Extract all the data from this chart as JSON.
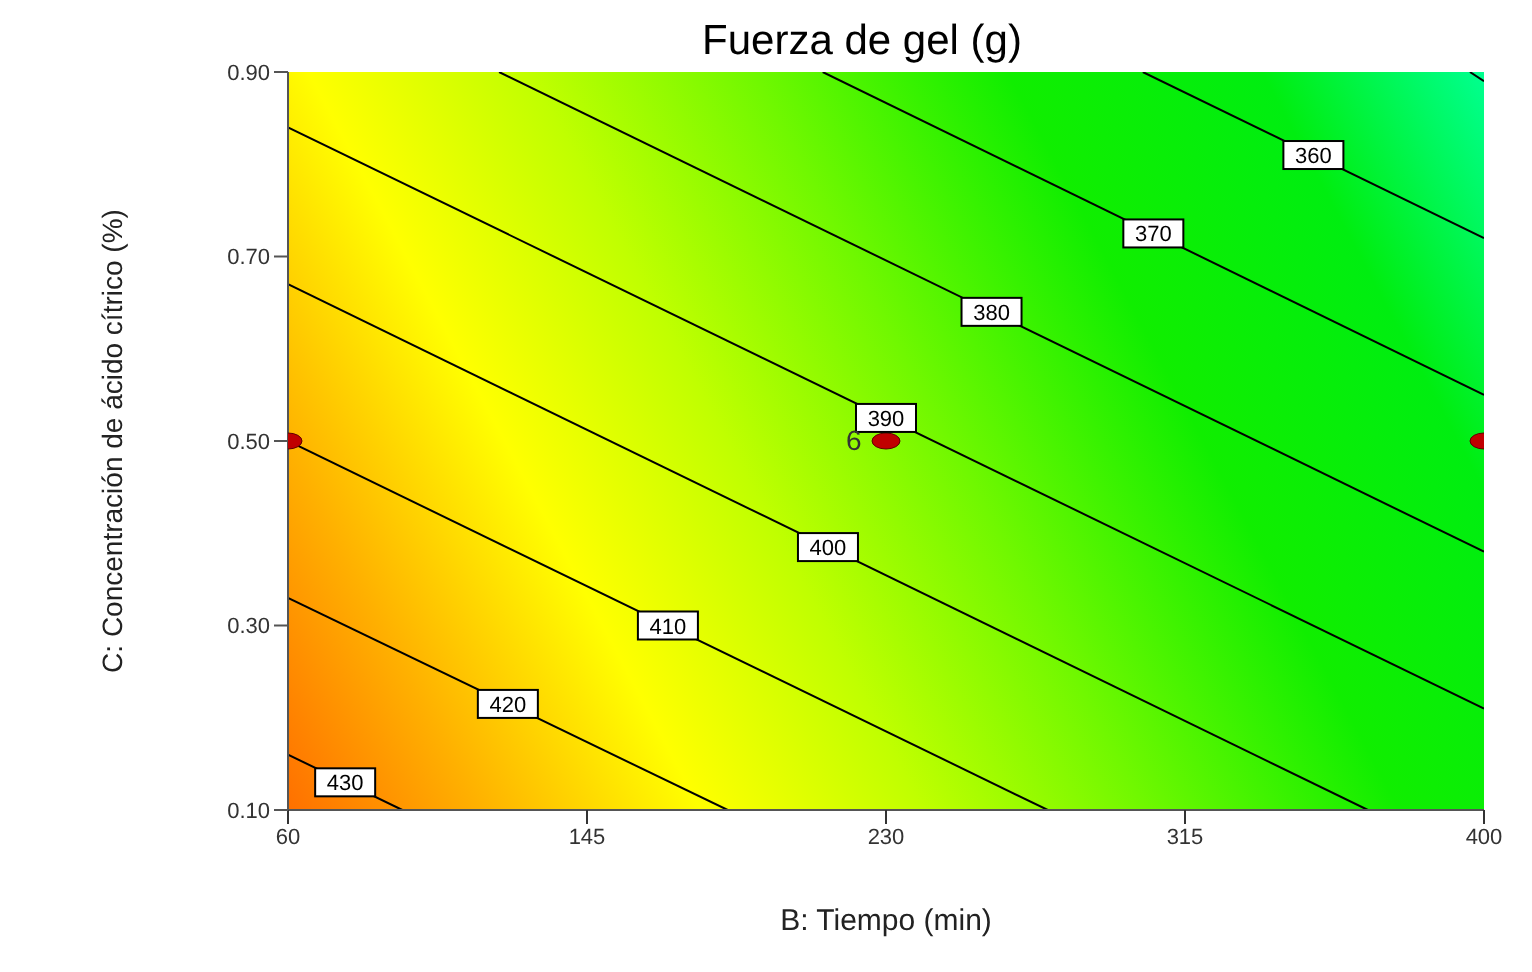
{
  "chart_data": {
    "type": "line",
    "title": "Fuerza de gel (g)",
    "xlabel": "B: Tiempo (min)",
    "ylabel": "C: Concentración de ácido cítrico (%)",
    "xlim": [
      60,
      400
    ],
    "xticks": [
      60,
      145,
      230,
      315,
      400
    ],
    "ylim": [
      0.1,
      0.9
    ],
    "yticks": [
      {
        "value": 0.1,
        "label": "0.10"
      },
      {
        "value": 0.3,
        "label": "0.30"
      },
      {
        "value": 0.5,
        "label": "0.50"
      },
      {
        "value": 0.7,
        "label": "0.70"
      },
      {
        "value": 0.9,
        "label": "0.90"
      }
    ],
    "grid": false,
    "legend": false,
    "line_style": "solid",
    "series": [
      {
        "name": "430",
        "type": "line",
        "color": "#000000",
        "marker": "none",
        "x": [
          60,
          92.5
        ],
        "values": [
          0.16,
          0.1
        ]
      },
      {
        "name": "420",
        "type": "line",
        "color": "#000000",
        "marker": "none",
        "x": [
          60,
          185
        ],
        "values": [
          0.33,
          0.1
        ]
      },
      {
        "name": "410",
        "type": "line",
        "color": "#000000",
        "marker": "none",
        "x": [
          60,
          276
        ],
        "values": [
          0.5,
          0.1
        ]
      },
      {
        "name": "400",
        "type": "line",
        "color": "#000000",
        "marker": "none",
        "x": [
          60,
          367
        ],
        "values": [
          0.67,
          0.1
        ]
      },
      {
        "name": "390",
        "type": "line",
        "color": "#000000",
        "marker": "none",
        "x": [
          60,
          400
        ],
        "values": [
          0.84,
          0.21
        ]
      },
      {
        "name": "380",
        "type": "line",
        "color": "#000000",
        "marker": "none",
        "x": [
          120,
          400
        ],
        "values": [
          0.9,
          0.38
        ]
      },
      {
        "name": "370",
        "type": "line",
        "color": "#000000",
        "marker": "none",
        "x": [
          212,
          400
        ],
        "values": [
          0.9,
          0.55
        ]
      },
      {
        "name": "360",
        "type": "line",
        "color": "#000000",
        "marker": "none",
        "x": [
          303,
          400
        ],
        "values": [
          0.9,
          0.72
        ]
      },
      {
        "type": "line",
        "color": "#000000",
        "marker": "none",
        "x": [
          396,
          400
        ],
        "values": [
          0.9,
          0.89
        ]
      },
      {
        "type": "scatter",
        "color": "#c00000",
        "marker": "circle",
        "x": [
          60,
          230,
          400
        ],
        "values": [
          0.5,
          0.5,
          0.5
        ]
      }
    ],
    "annotations": [
      {
        "text": "6",
        "x": 230,
        "y": 0.5
      }
    ]
  }
}
